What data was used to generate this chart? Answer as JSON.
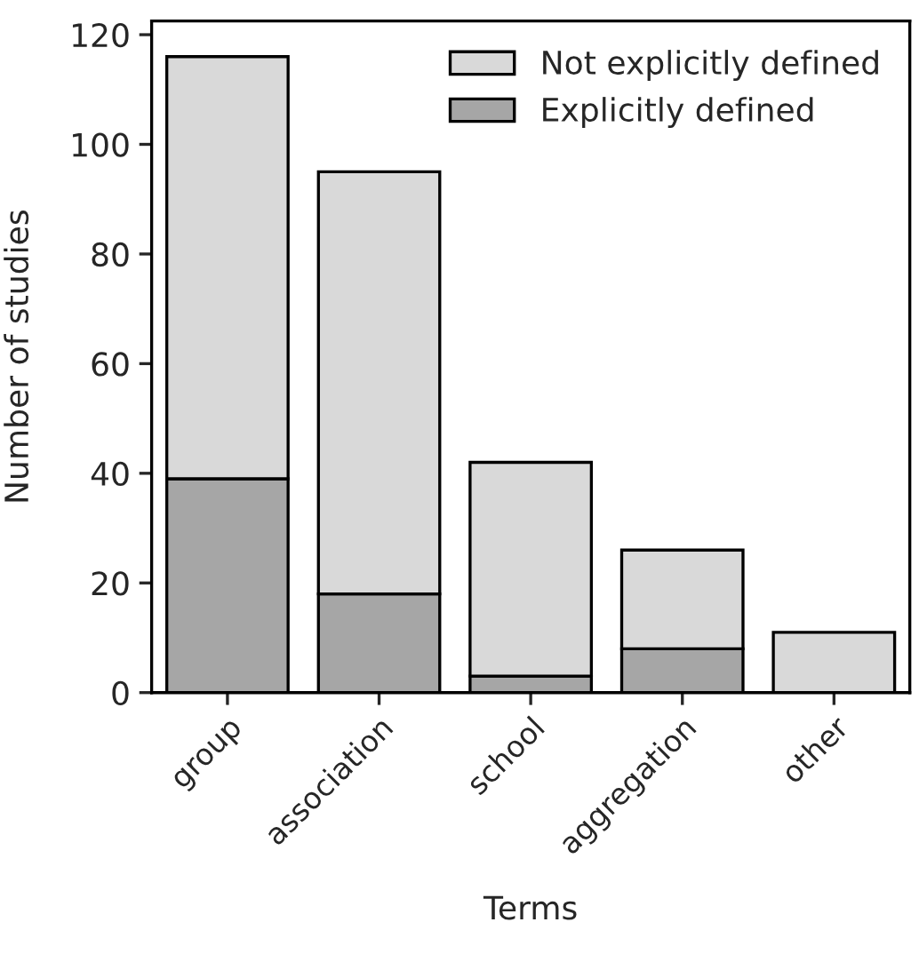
{
  "chart_data": {
    "type": "bar",
    "stacked": true,
    "xlabel": "Terms",
    "ylabel": "Number of studies",
    "categories": [
      "group",
      "association",
      "school",
      "aggregation",
      "other"
    ],
    "series": [
      {
        "name": "Explicitly defined",
        "color": "#a6a6a6",
        "values": [
          39,
          18,
          3,
          8,
          0
        ]
      },
      {
        "name": "Not explicitly defined",
        "color": "#d9d9d9",
        "values": [
          77,
          77,
          39,
          18,
          11
        ]
      }
    ],
    "ylim": [
      0,
      122.5
    ],
    "yticks": [
      0,
      20,
      40,
      60,
      80,
      100,
      120
    ],
    "grid": false,
    "legend": "top right"
  }
}
